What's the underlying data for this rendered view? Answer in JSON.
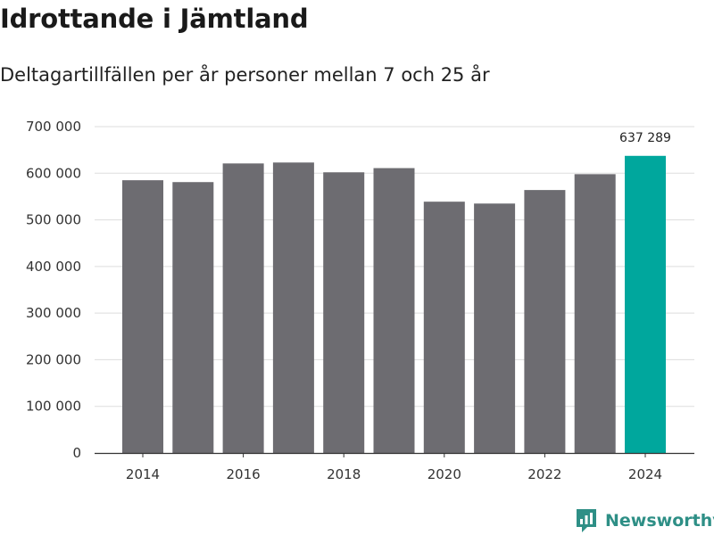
{
  "header": {
    "title": "Idrottande i Jämtland",
    "subtitle": "Deltagartillfällen per år personer mellan 7 och 25 år"
  },
  "brand": {
    "name": "Newsworthy",
    "color": "#2e8f86"
  },
  "colors": {
    "bar": "#6d6c71",
    "highlight": "#00a79d",
    "grid": "#dddddd",
    "axis": "#333333"
  },
  "chart_data": {
    "type": "bar",
    "title": "Idrottande i Jämtland",
    "subtitle": "Deltagartillfällen per år personer mellan 7 och 25 år",
    "xlabel": "",
    "ylabel": "",
    "categories": [
      "2014",
      "2015",
      "2016",
      "2017",
      "2018",
      "2019",
      "2020",
      "2021",
      "2022",
      "2023",
      "2024"
    ],
    "values": [
      585000,
      581000,
      621000,
      623000,
      602000,
      611000,
      539000,
      535000,
      564000,
      598000,
      637289
    ],
    "highlight_index": 10,
    "data_labels": [
      {
        "index": 10,
        "text": "637 289"
      }
    ],
    "ylim": [
      0,
      700000
    ],
    "yticks": [
      0,
      100000,
      200000,
      300000,
      400000,
      500000,
      600000,
      700000
    ],
    "ytick_labels": [
      "0",
      "100 000",
      "200 000",
      "300 000",
      "400 000",
      "500 000",
      "600 000",
      "700 000"
    ],
    "xtick_labels": [
      "2014",
      "2016",
      "2018",
      "2020",
      "2022",
      "2024"
    ],
    "grid": true,
    "legend": "none"
  }
}
